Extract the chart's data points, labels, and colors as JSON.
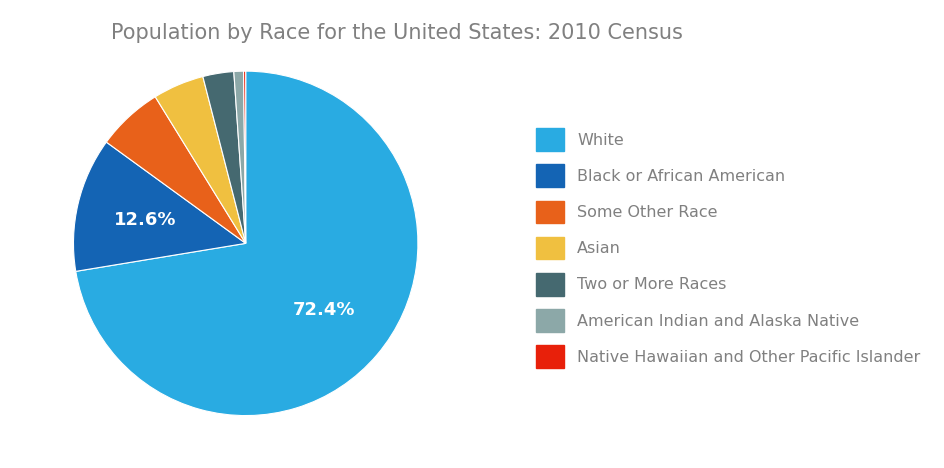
{
  "title": "Population by Race for the United States: 2010 Census",
  "labels": [
    "White",
    "Black or African American",
    "Some Other Race",
    "Asian",
    "Two or More Races",
    "American Indian and Alaska Native",
    "Native Hawaiian and Other Pacific Islander"
  ],
  "values": [
    72.4,
    12.6,
    6.2,
    4.8,
    2.9,
    0.9,
    0.2
  ],
  "colors": [
    "#29ABE2",
    "#1464B4",
    "#E8611A",
    "#F0C040",
    "#456970",
    "#8CA8A8",
    "#E8200A"
  ],
  "title_fontsize": 15,
  "title_color": "#808080",
  "legend_fontsize": 12,
  "legend_text_color": "#808080",
  "background_color": "#ffffff"
}
